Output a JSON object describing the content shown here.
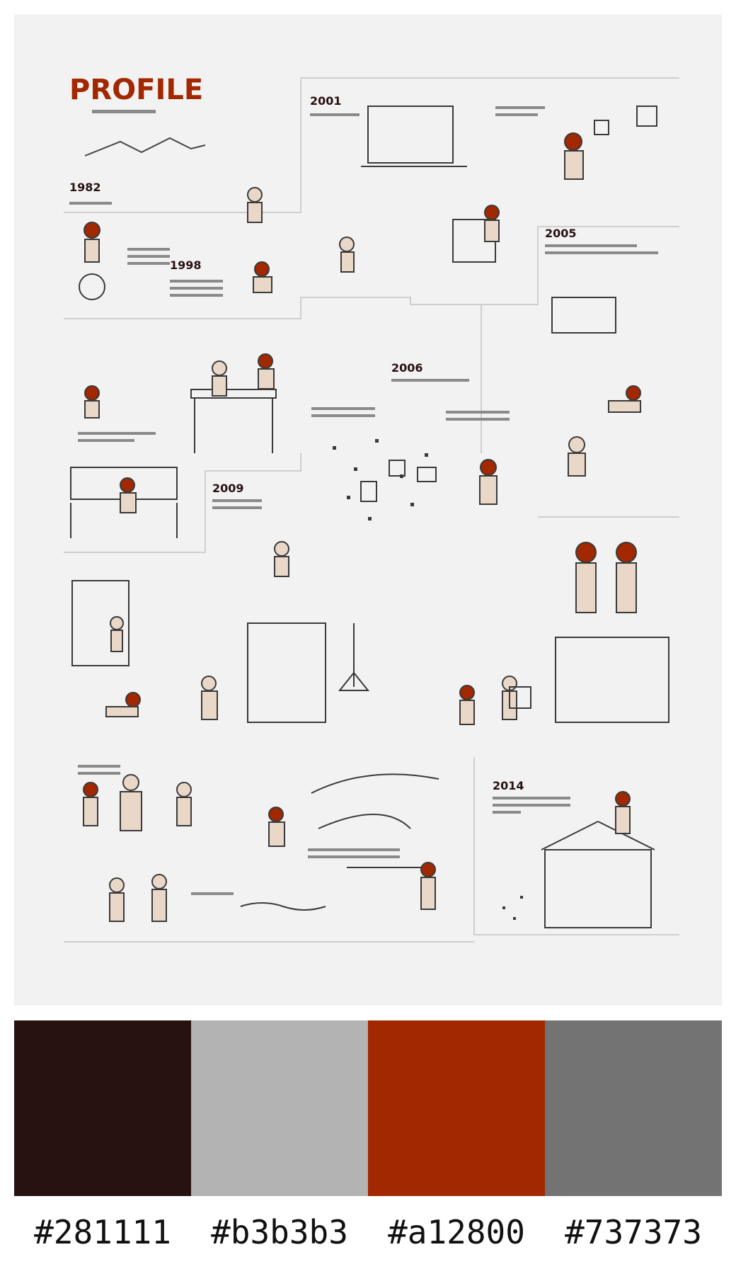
{
  "poster": {
    "title": "PROFILE",
    "subtitle": "",
    "years": [
      "1982",
      "1998",
      "2001",
      "2005",
      "2006",
      "2009",
      "2014"
    ],
    "accent_color": "#a12800",
    "line_color": "#3a3a3a"
  },
  "palette": [
    {
      "hex": "#281111",
      "label": "#281111"
    },
    {
      "hex": "#b3b3b3",
      "label": "#b3b3b3"
    },
    {
      "hex": "#a12800",
      "label": "#a12800"
    },
    {
      "hex": "#737373",
      "label": "#737373"
    }
  ]
}
